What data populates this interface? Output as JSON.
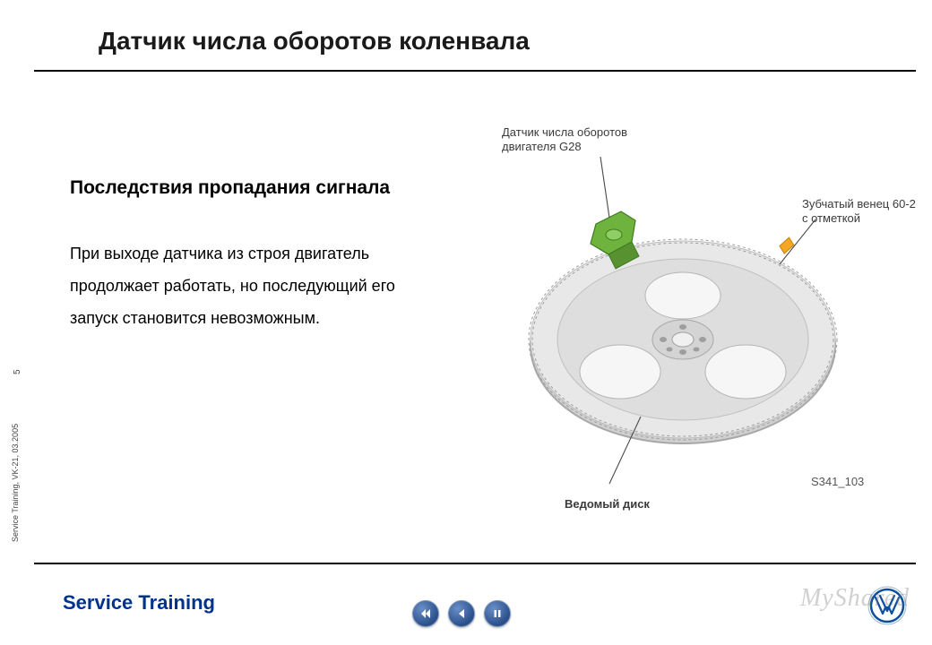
{
  "header": {
    "title": "Датчик числа оборотов коленвала"
  },
  "content": {
    "section_title": "Последствия пропадания сигнала",
    "body": "При выходе датчика из строя двигатель продолжает работать, но последующий его запуск становится невозможным."
  },
  "diagram": {
    "callouts": {
      "sensor": "Датчик числа оборотов\nдвигателя G28",
      "ring": "Зубчатый венец 60-2\nс отметкой",
      "disc": "Ведомый диск"
    },
    "image_id": "S341_103",
    "colors": {
      "sensor_body": "#6fb33f",
      "sensor_shadow": "#3e7a1e",
      "marker": "#f5a623",
      "disc_face": "#e8e8e8",
      "disc_edge": "#d0d0d0",
      "disc_dark": "#bfbfbf",
      "teeth": "#b8b8b8",
      "line": "#4a4a4a"
    }
  },
  "footer": {
    "brand": "Service Training",
    "side_note": "Service Training, VK-21, 03.2005",
    "page": "5",
    "logo": {
      "ring_color": "#0d4f9c",
      "letter_color": "#0d4f9c",
      "bg": "#ffffff"
    }
  },
  "watermark": "MyShared",
  "nav": {
    "rewind": "rewind",
    "prev": "previous",
    "pause": "pause"
  }
}
